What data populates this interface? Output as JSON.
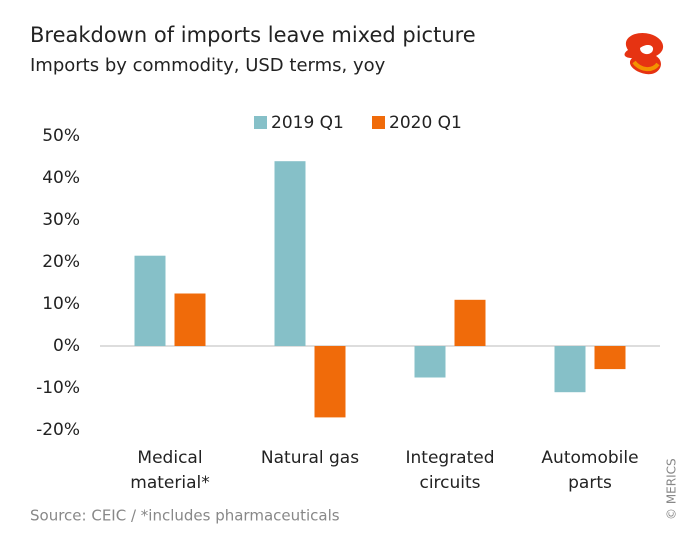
{
  "chart_data": {
    "type": "bar",
    "title": "Breakdown of imports leave mixed picture",
    "subtitle": "Imports by commodity, USD terms, yoy",
    "source": "Source: CEIC / *includes pharmaceuticals",
    "credit": "© MERICS",
    "categories": [
      "Medical material*",
      "Natural gas",
      "Integrated circuits",
      "Automobile parts"
    ],
    "series": [
      {
        "name": "2019 Q1",
        "color": "#86c0c8",
        "values": [
          21.5,
          44,
          -7.5,
          -11
        ]
      },
      {
        "name": "2020 Q1",
        "color": "#f06b0a",
        "values": [
          12.5,
          -17,
          11,
          -5.5
        ]
      }
    ],
    "ylim": [
      -20,
      50
    ],
    "yticks": [
      {
        "value": -20,
        "label": "-20%"
      },
      {
        "value": -10,
        "label": "-10%"
      },
      {
        "value": 0,
        "label": "0%"
      },
      {
        "value": 10,
        "label": "10%"
      },
      {
        "value": 20,
        "label": "20%"
      },
      {
        "value": 30,
        "label": "30%"
      },
      {
        "value": 40,
        "label": "40%"
      },
      {
        "value": 50,
        "label": "50%"
      }
    ],
    "grid": false
  }
}
